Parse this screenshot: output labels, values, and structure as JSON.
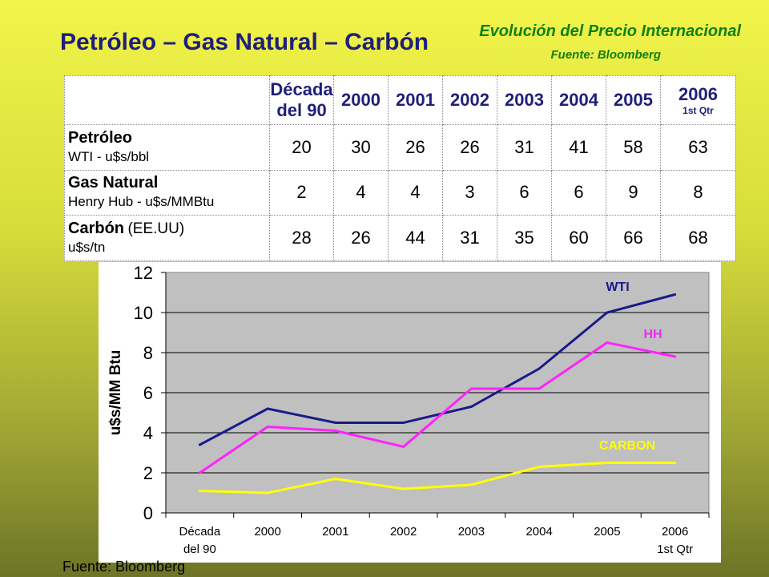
{
  "header": {
    "title": "Petróleo – Gas Natural – Carbón",
    "subtitle": "Evolución del Precio Internacional",
    "source": "Fuente: Bloomberg"
  },
  "table": {
    "columns": [
      {
        "l1": "Década",
        "l2": "del 90"
      },
      {
        "l1": "2000",
        "l2": ""
      },
      {
        "l1": "2001",
        "l2": ""
      },
      {
        "l1": "2002",
        "l2": ""
      },
      {
        "l1": "2003",
        "l2": ""
      },
      {
        "l1": "2004",
        "l2": ""
      },
      {
        "l1": "2005",
        "l2": ""
      },
      {
        "l1": "2006",
        "l2": "1st Qtr"
      }
    ],
    "rows": [
      {
        "name": "Petróleo",
        "note": "",
        "unit": "WTI - u$s/bbl",
        "values": [
          "20",
          "30",
          "26",
          "26",
          "31",
          "41",
          "58",
          "63"
        ]
      },
      {
        "name": "Gas Natural",
        "note": "",
        "unit": "Henry Hub - u$s/MMBtu",
        "values": [
          "2",
          "4",
          "4",
          "3",
          "6",
          "6",
          "9",
          "8"
        ]
      },
      {
        "name": "Carbón",
        "note": "(EE.UU)",
        "unit": "u$s/tn",
        "values": [
          "28",
          "26",
          "44",
          "31",
          "35",
          "60",
          "66",
          "68"
        ]
      }
    ]
  },
  "chart_data": {
    "type": "line",
    "ylabel": "u$s/MM Btu",
    "xlabel": "",
    "ylim": [
      0,
      12
    ],
    "yticks": [
      0,
      2,
      4,
      6,
      8,
      10,
      12
    ],
    "grid": true,
    "categories": [
      {
        "l1": "Década",
        "l2": "del 90"
      },
      {
        "l1": "2000",
        "l2": ""
      },
      {
        "l1": "2001",
        "l2": ""
      },
      {
        "l1": "2002",
        "l2": ""
      },
      {
        "l1": "2003",
        "l2": ""
      },
      {
        "l1": "2004",
        "l2": ""
      },
      {
        "l1": "2005",
        "l2": ""
      },
      {
        "l1": "2006",
        "l2": "1st Qtr"
      }
    ],
    "series": [
      {
        "name": "WTI",
        "color": "#1a1a8a",
        "values": [
          3.4,
          5.2,
          4.5,
          4.5,
          5.3,
          7.2,
          10.0,
          10.9
        ]
      },
      {
        "name": "HH",
        "color": "#ff22ff",
        "values": [
          2.0,
          4.3,
          4.1,
          3.3,
          6.2,
          6.2,
          8.5,
          7.8
        ]
      },
      {
        "name": "CARBON",
        "color": "#ffff00",
        "values": [
          1.1,
          1.0,
          1.7,
          1.2,
          1.4,
          2.3,
          2.5,
          2.5
        ]
      }
    ]
  },
  "footer": {
    "source": "Fuente: Bloomberg"
  }
}
